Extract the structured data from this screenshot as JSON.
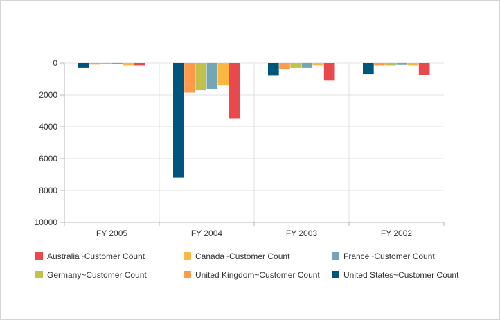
{
  "chart_data": {
    "type": "bar",
    "title": "",
    "xlabel": "",
    "ylabel": "",
    "categories": [
      "FY 2005",
      "FY 2004",
      "FY 2003",
      "FY 2002"
    ],
    "ylim": [
      0,
      10000
    ],
    "y_ticks": [
      0,
      2000,
      4000,
      6000,
      8000,
      10000
    ],
    "y_axis_inverted": true,
    "grid": true,
    "legend_position": "bottom",
    "series": [
      {
        "name": "United States~Customer Count",
        "color": "#00557d",
        "values": [
          300,
          7200,
          800,
          700
        ]
      },
      {
        "name": "United Kingdom~Customer Count",
        "color": "#fd9a4c",
        "values": [
          100,
          1850,
          350,
          150
        ]
      },
      {
        "name": "Germany~Customer Count",
        "color": "#c2c14b",
        "values": [
          80,
          1700,
          300,
          150
        ]
      },
      {
        "name": "France~Customer Count",
        "color": "#74a7b4",
        "values": [
          70,
          1650,
          300,
          120
        ]
      },
      {
        "name": "Canada~Customer Count",
        "color": "#fbb73f",
        "values": [
          150,
          1400,
          150,
          150
        ]
      },
      {
        "name": "Australia~Customer Count",
        "color": "#e8494d",
        "values": [
          150,
          3500,
          1100,
          750
        ]
      }
    ],
    "legend_order": [
      "Australia~Customer Count",
      "Canada~Customer Count",
      "France~Customer Count",
      "Germany~Customer Count",
      "United Kingdom~Customer Count",
      "United States~Customer Count"
    ]
  }
}
